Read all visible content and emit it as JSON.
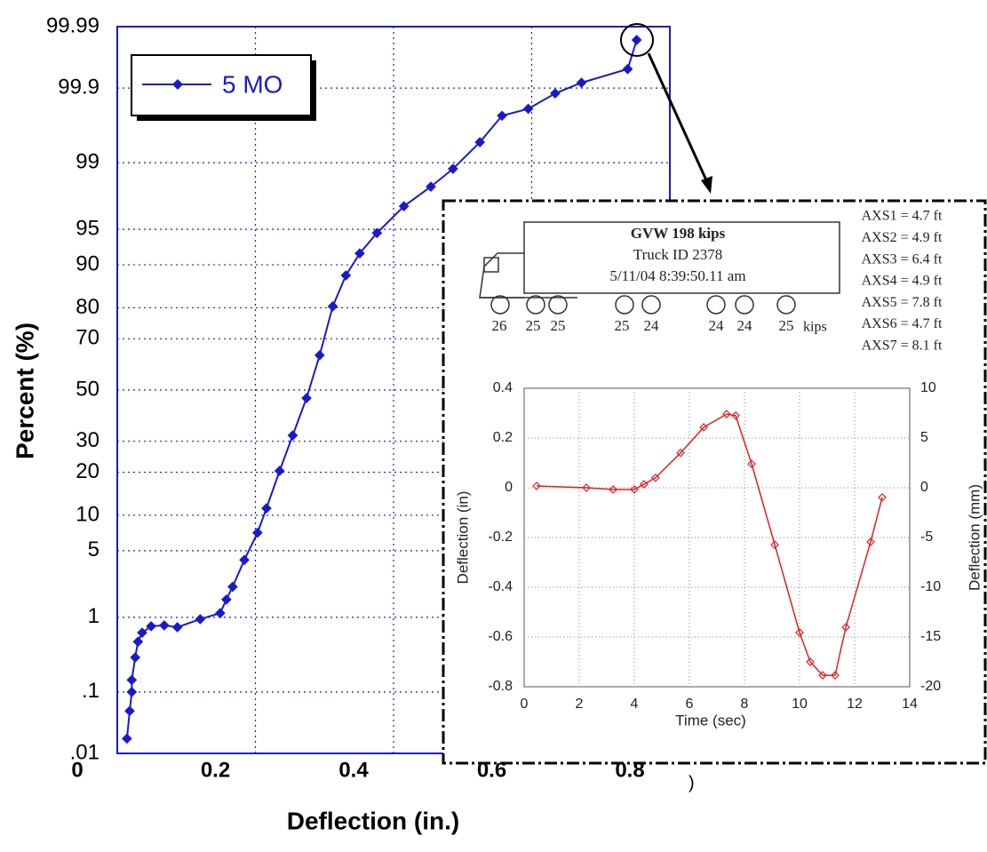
{
  "chart_data": [
    {
      "type": "line",
      "yscale": "probability",
      "xlabel": "Deflection (in.)",
      "ylabel": "Percent (%)",
      "x": [
        0.014,
        0.018,
        0.021,
        0.021,
        0.026,
        0.03,
        0.036,
        0.049,
        0.068,
        0.087,
        0.12,
        0.149,
        0.158,
        0.167,
        0.184,
        0.203,
        0.216,
        0.235,
        0.254,
        0.274,
        0.293,
        0.312,
        0.331,
        0.351,
        0.376,
        0.415,
        0.454,
        0.486,
        0.525,
        0.557,
        0.595,
        0.634,
        0.672,
        0.739,
        0.752
      ],
      "series": [
        {
          "name": "5 MO",
          "color": "#1a1acc",
          "values": [
            0.018,
            0.051,
            0.1,
            0.15,
            0.31,
            0.5,
            0.65,
            0.78,
            0.8,
            0.76,
            0.95,
            1.12,
            1.6,
            2.2,
            4.1,
            7.2,
            11.3,
            20.4,
            32.1,
            46.7,
            63.9,
            80.4,
            87.96,
            91.9,
            94.6,
            97,
            98.13,
            98.82,
            99.44,
            99.75,
            99.8,
            99.88,
            99.917,
            99.949,
            99.983
          ]
        }
      ],
      "xlim": [
        0,
        0.8
      ],
      "xticks": [
        0,
        0.2,
        0.4,
        0.6,
        0.8
      ],
      "ylim": [
        0.01,
        99.99
      ],
      "yticks": [
        99.99,
        99.9,
        99,
        95,
        90,
        80,
        70,
        50,
        30,
        20,
        10,
        5,
        1,
        {
          "value": 0.1,
          "label": ".1"
        },
        {
          "value": 0.01,
          "label": ".01"
        }
      ],
      "grid": true,
      "legend": "upper left",
      "annotations": [
        ")"
      ]
    },
    {
      "type": "line",
      "xlabel": "Time (sec)",
      "ylabel": "Deflection (in)",
      "y2label": "Deflection (mm)",
      "x": [
        0.45,
        2.26,
        3.23,
        4.0,
        4.35,
        4.77,
        5.68,
        6.52,
        7.35,
        7.68,
        8.26,
        9.1,
        10.0,
        10.39,
        10.84,
        11.29,
        11.68,
        12.58,
        13.0
      ],
      "series": [
        {
          "color": "#e02020",
          "values": [
            0.007,
            0.0,
            -0.007,
            -0.007,
            0.014,
            0.04,
            0.14,
            0.243,
            0.296,
            0.29,
            0.096,
            -0.229,
            -0.582,
            -0.7,
            -0.754,
            -0.754,
            -0.561,
            -0.218,
            -0.039
          ]
        }
      ],
      "xlim": [
        0,
        14
      ],
      "xticks": [
        0,
        2,
        4,
        6,
        8,
        10,
        12,
        14
      ],
      "ylim": [
        -0.8,
        0.4
      ],
      "yticks": [
        -0.8,
        -0.6,
        -0.4,
        -0.2,
        0,
        0.2,
        0.4
      ],
      "y2lim": [
        -20,
        10
      ],
      "y2ticks": [
        -20,
        -15,
        -10,
        -5,
        0,
        5,
        10
      ],
      "grid": true
    }
  ],
  "truck": {
    "title": "GVW 198 kips",
    "id": "Truck ID 2378",
    "timestamp": "5/11/04 8:39:50.11 am",
    "axle_loads": [
      26,
      25,
      25,
      25,
      24,
      24,
      24,
      25
    ],
    "axle_load_unit": "kips",
    "axle_spacings": [
      "AXS1 = 4.7 ft",
      "AXS2 = 4.9 ft",
      "AXS3 = 6.4 ft",
      "AXS4 = 4.9 ft",
      "AXS5 = 7.8 ft",
      "AXS6 = 4.7 ft",
      "AXS7 = 8.1 ft"
    ]
  }
}
